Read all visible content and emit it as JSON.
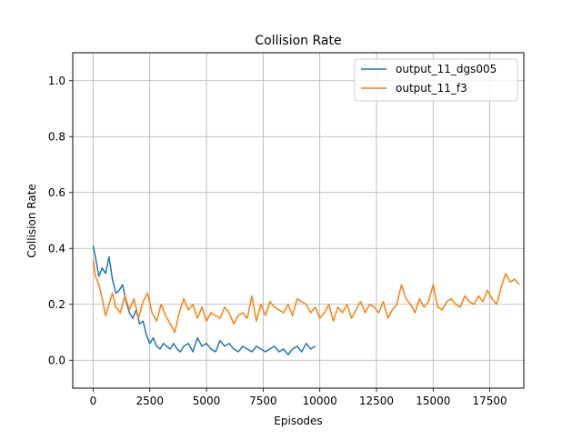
{
  "chart_data": {
    "type": "line",
    "title": "Collision Rate",
    "xlabel": "Episodes",
    "ylabel": "Collision Rate",
    "xlim": [
      -900,
      19000
    ],
    "ylim": [
      -0.1,
      1.1
    ],
    "x_ticks": [
      0,
      2500,
      5000,
      7500,
      10000,
      12500,
      15000,
      17500
    ],
    "y_ticks": [
      0.0,
      0.2,
      0.4,
      0.6,
      0.8,
      1.0
    ],
    "x_tick_labels": [
      "0",
      "2500",
      "5000",
      "7500",
      "10000",
      "12500",
      "15000",
      "17500"
    ],
    "y_tick_labels": [
      "0.0",
      "0.2",
      "0.4",
      "0.6",
      "0.8",
      "1.0"
    ],
    "grid": true,
    "legend_position": "top-right",
    "series": [
      {
        "name": "output_11_dgs005",
        "color": "#1f77b4",
        "x": [
          0,
          100,
          250,
          400,
          550,
          700,
          850,
          1000,
          1150,
          1300,
          1450,
          1600,
          1750,
          1900,
          2050,
          2200,
          2350,
          2500,
          2650,
          2800,
          2950,
          3100,
          3250,
          3400,
          3550,
          3700,
          3850,
          4000,
          4200,
          4400,
          4600,
          4800,
          5000,
          5200,
          5400,
          5600,
          5800,
          6000,
          6200,
          6400,
          6600,
          6800,
          7000,
          7200,
          7400,
          7600,
          7800,
          8000,
          8200,
          8400,
          8600,
          8800,
          9000,
          9200,
          9400,
          9600,
          9800
        ],
        "y": [
          0.41,
          0.37,
          0.3,
          0.33,
          0.31,
          0.37,
          0.29,
          0.24,
          0.25,
          0.27,
          0.21,
          0.17,
          0.15,
          0.18,
          0.13,
          0.14,
          0.09,
          0.06,
          0.08,
          0.05,
          0.04,
          0.06,
          0.05,
          0.04,
          0.06,
          0.04,
          0.03,
          0.05,
          0.06,
          0.03,
          0.08,
          0.05,
          0.06,
          0.04,
          0.03,
          0.07,
          0.05,
          0.06,
          0.04,
          0.03,
          0.05,
          0.04,
          0.03,
          0.05,
          0.04,
          0.03,
          0.04,
          0.05,
          0.03,
          0.04,
          0.02,
          0.04,
          0.05,
          0.03,
          0.06,
          0.04,
          0.05
        ]
      },
      {
        "name": "output_11_f3",
        "color": "#ff7f0e",
        "x": [
          0,
          100,
          250,
          400,
          550,
          700,
          850,
          1000,
          1200,
          1400,
          1600,
          1800,
          2000,
          2200,
          2400,
          2600,
          2800,
          3000,
          3200,
          3400,
          3600,
          3800,
          4000,
          4200,
          4400,
          4600,
          4800,
          5000,
          5200,
          5400,
          5600,
          5800,
          6000,
          6200,
          6400,
          6600,
          6800,
          7000,
          7200,
          7400,
          7600,
          7800,
          8000,
          8200,
          8400,
          8600,
          8800,
          9000,
          9200,
          9400,
          9600,
          9800,
          10000,
          10200,
          10400,
          10600,
          10800,
          11000,
          11200,
          11400,
          11600,
          11800,
          12000,
          12200,
          12400,
          12600,
          12800,
          13000,
          13200,
          13400,
          13600,
          13800,
          14000,
          14200,
          14400,
          14600,
          14800,
          15000,
          15200,
          15400,
          15600,
          15800,
          16000,
          16200,
          16400,
          16600,
          16800,
          17000,
          17200,
          17400,
          17600,
          17800,
          18000,
          18200,
          18400,
          18600,
          18800
        ],
        "y": [
          0.36,
          0.3,
          0.27,
          0.22,
          0.16,
          0.2,
          0.24,
          0.19,
          0.17,
          0.23,
          0.18,
          0.22,
          0.15,
          0.21,
          0.24,
          0.17,
          0.14,
          0.2,
          0.16,
          0.13,
          0.1,
          0.17,
          0.22,
          0.18,
          0.2,
          0.15,
          0.19,
          0.14,
          0.17,
          0.16,
          0.15,
          0.19,
          0.17,
          0.13,
          0.16,
          0.17,
          0.15,
          0.23,
          0.14,
          0.2,
          0.16,
          0.21,
          0.19,
          0.18,
          0.17,
          0.2,
          0.16,
          0.22,
          0.21,
          0.2,
          0.17,
          0.19,
          0.15,
          0.17,
          0.2,
          0.14,
          0.19,
          0.17,
          0.2,
          0.15,
          0.18,
          0.21,
          0.17,
          0.2,
          0.19,
          0.17,
          0.21,
          0.15,
          0.18,
          0.2,
          0.27,
          0.22,
          0.2,
          0.17,
          0.22,
          0.19,
          0.21,
          0.27,
          0.19,
          0.18,
          0.21,
          0.22,
          0.2,
          0.19,
          0.23,
          0.21,
          0.2,
          0.23,
          0.21,
          0.25,
          0.22,
          0.2,
          0.26,
          0.31,
          0.28,
          0.29,
          0.27
        ]
      }
    ]
  }
}
